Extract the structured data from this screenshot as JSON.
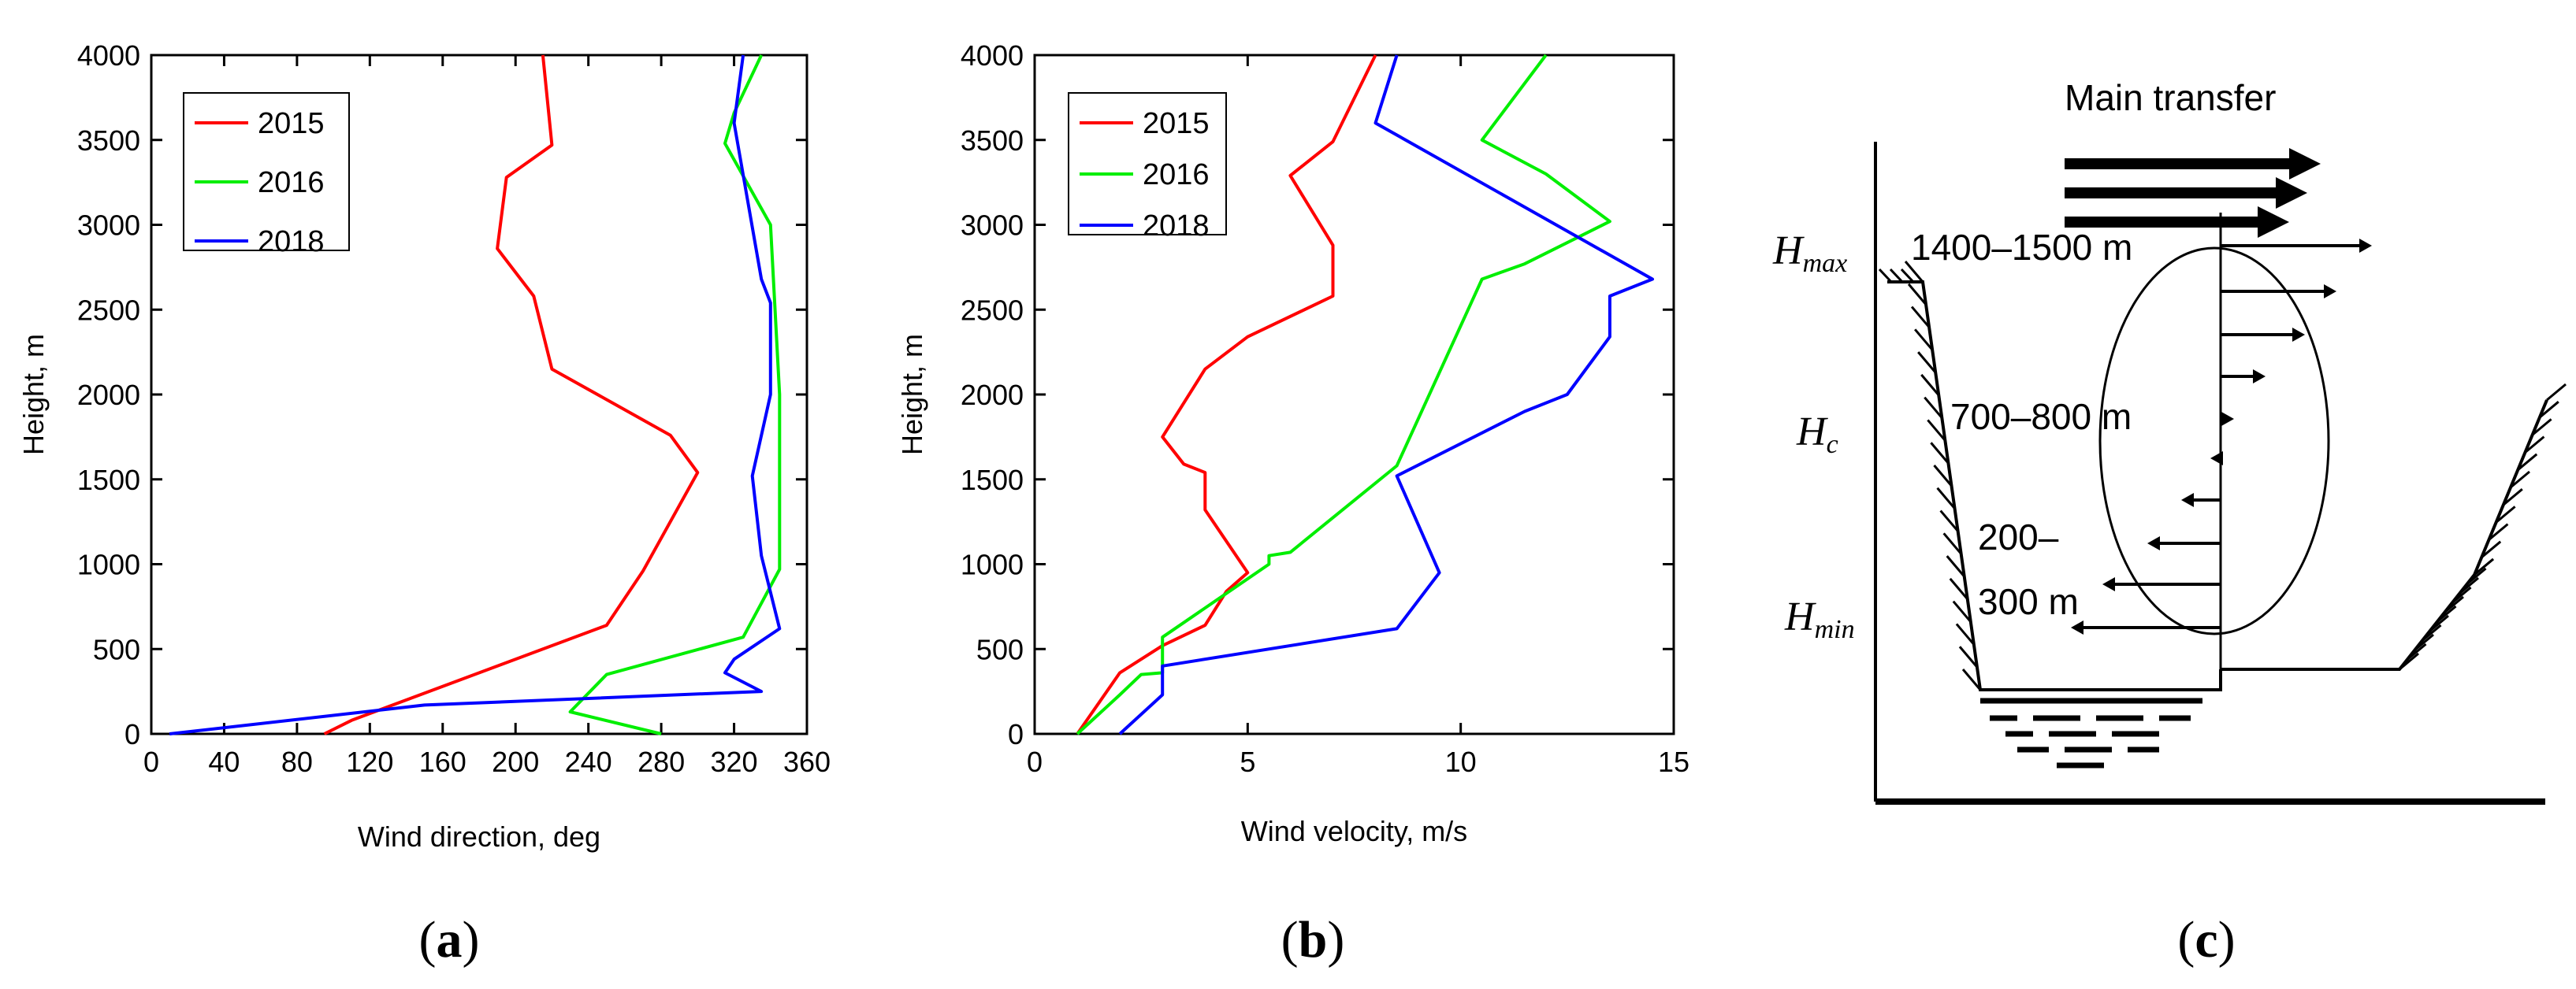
{
  "chart_data": [
    {
      "type": "line",
      "panel_label_prefix": "(",
      "panel_label_letter": "a",
      "panel_label_suffix": ")",
      "xlabel": "Wind direction, deg",
      "ylabel": "Height, m",
      "xlim": [
        0,
        360
      ],
      "ylim": [
        0,
        4000
      ],
      "xticks": [
        0,
        40,
        80,
        120,
        160,
        200,
        240,
        280,
        320,
        360
      ],
      "yticks": [
        0,
        500,
        1000,
        1500,
        2000,
        2500,
        3000,
        3500,
        4000
      ],
      "legend_position": "top-left",
      "series": [
        {
          "name": "2015",
          "color": "#ff0000",
          "points": [
            [
              95,
              0
            ],
            [
              110,
              80
            ],
            [
              250,
              640
            ],
            [
              270,
              960
            ],
            [
              300,
              1540
            ],
            [
              285,
              1760
            ],
            [
              220,
              2150
            ],
            [
              210,
              2580
            ],
            [
              190,
              2860
            ],
            [
              195,
              3280
            ],
            [
              220,
              3470
            ],
            [
              215,
              4000
            ]
          ]
        },
        {
          "name": "2016",
          "color": "#00ee00",
          "points": [
            [
              280,
              0
            ],
            [
              230,
              130
            ],
            [
              250,
              350
            ],
            [
              325,
              570
            ],
            [
              345,
              970
            ],
            [
              345,
              1060
            ],
            [
              345,
              2000
            ],
            [
              340,
              3000
            ],
            [
              315,
              3480
            ],
            [
              320,
              3660
            ],
            [
              335,
              4000
            ]
          ]
        },
        {
          "name": "2018",
          "color": "#0000ff",
          "points": [
            [
              10,
              0
            ],
            [
              150,
              170
            ],
            [
              335,
              250
            ],
            [
              315,
              360
            ],
            [
              320,
              440
            ],
            [
              345,
              620
            ],
            [
              335,
              1050
            ],
            [
              330,
              1520
            ],
            [
              340,
              2000
            ],
            [
              340,
              2540
            ],
            [
              335,
              2680
            ],
            [
              320,
              3600
            ],
            [
              325,
              4000
            ]
          ]
        }
      ]
    },
    {
      "type": "line",
      "panel_label_prefix": "(",
      "panel_label_letter": "b",
      "panel_label_suffix": ")",
      "xlabel": "Wind velocity, m/s",
      "ylabel": "Height, m",
      "xlim": [
        0,
        15
      ],
      "ylim": [
        0,
        4000
      ],
      "xticks": [
        0,
        5,
        10,
        15
      ],
      "yticks": [
        0,
        500,
        1000,
        1500,
        2000,
        2500,
        3000,
        3500,
        4000
      ],
      "legend_position": "top-left",
      "series": [
        {
          "name": "2015",
          "color": "#ff0000",
          "points": [
            [
              1.0,
              0
            ],
            [
              2.0,
              360
            ],
            [
              3.0,
              520
            ],
            [
              4.0,
              640
            ],
            [
              4.5,
              840
            ],
            [
              5.0,
              950
            ],
            [
              4.0,
              1320
            ],
            [
              4.0,
              1540
            ],
            [
              3.5,
              1590
            ],
            [
              3.0,
              1750
            ],
            [
              4.0,
              2150
            ],
            [
              5.0,
              2340
            ],
            [
              7.0,
              2580
            ],
            [
              7.0,
              2880
            ],
            [
              6.0,
              3290
            ],
            [
              7.0,
              3490
            ],
            [
              8.0,
              4000
            ]
          ]
        },
        {
          "name": "2016",
          "color": "#00ee00",
          "points": [
            [
              1.0,
              0
            ],
            [
              2.0,
              230
            ],
            [
              2.5,
              350
            ],
            [
              3.0,
              360
            ],
            [
              3.0,
              400
            ],
            [
              3.0,
              570
            ],
            [
              5.5,
              1000
            ],
            [
              5.5,
              1050
            ],
            [
              6.0,
              1070
            ],
            [
              8.5,
              1580
            ],
            [
              10.5,
              2680
            ],
            [
              11.5,
              2770
            ],
            [
              13.5,
              3020
            ],
            [
              12.0,
              3300
            ],
            [
              10.5,
              3500
            ],
            [
              12.0,
              4000
            ]
          ]
        },
        {
          "name": "2018",
          "color": "#0000ff",
          "points": [
            [
              2.0,
              0
            ],
            [
              3.0,
              230
            ],
            [
              3.0,
              400
            ],
            [
              8.5,
              620
            ],
            [
              9.5,
              950
            ],
            [
              8.5,
              1520
            ],
            [
              11.5,
              1900
            ],
            [
              12.5,
              2000
            ],
            [
              13.5,
              2340
            ],
            [
              13.5,
              2580
            ],
            [
              14.5,
              2680
            ],
            [
              8.0,
              3600
            ],
            [
              8.5,
              4000
            ]
          ]
        }
      ]
    }
  ],
  "diagram": {
    "panel_label_prefix": "(",
    "panel_label_letter": "c",
    "panel_label_suffix": ")",
    "title": "Main transfer",
    "h_max_main": "H",
    "h_max_sub": "max",
    "h_c_main": "H",
    "h_c_sub": "c",
    "h_min_main": "H",
    "h_min_sub": "min",
    "label_top": "1400–1500 m",
    "label_mid": "700–800 m",
    "label_low_1": "200–",
    "label_low_2": "300 m"
  }
}
